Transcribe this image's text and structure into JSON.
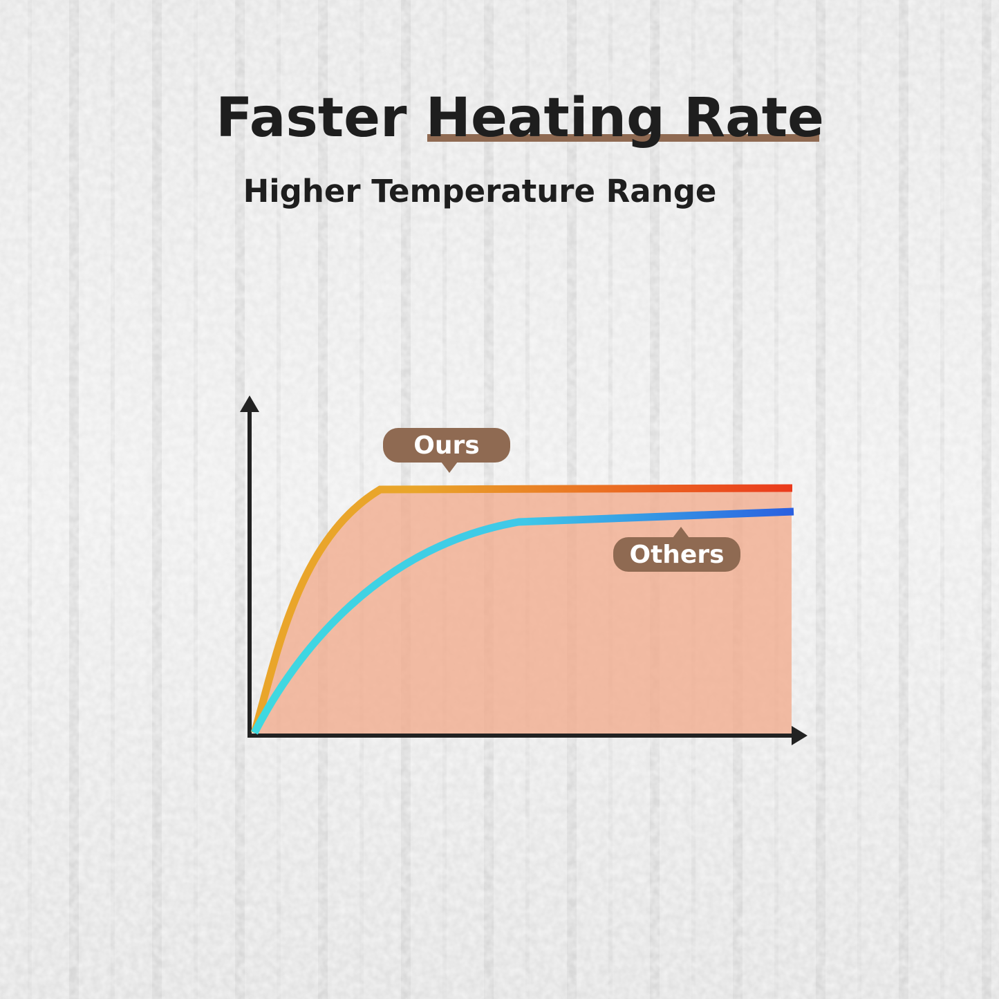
{
  "header": {
    "title": "Faster Heating Rate",
    "subtitle": "Higher Temperature Range"
  },
  "labels": {
    "ours": "Ours",
    "others": "Others"
  }
}
